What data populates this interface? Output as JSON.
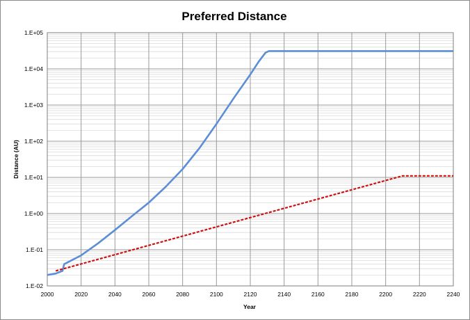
{
  "chart_data": {
    "type": "line",
    "title": "Preferred Distance",
    "xlabel": "Year",
    "ylabel": "Distance (AU)",
    "xlim": [
      2000,
      2240
    ],
    "ylim": [
      0.01,
      100000
    ],
    "yscale": "log",
    "x_ticks": [
      2000,
      2020,
      2040,
      2060,
      2080,
      2100,
      2120,
      2140,
      2160,
      2180,
      2200,
      2220,
      2240
    ],
    "x_tick_labels": [
      "2000",
      "2020",
      "2040",
      "2060",
      "2080",
      "2100",
      "2120",
      "2140",
      "2160",
      "2180",
      "2200",
      "2220",
      "2240"
    ],
    "y_ticks": [
      0.01,
      0.1,
      1,
      10,
      100,
      1000,
      10000,
      100000
    ],
    "y_tick_labels": [
      "1.E-02",
      "1.E-01",
      "1.E+00",
      "1.E+01",
      "1.E+02",
      "1.E+03",
      "1.E+04",
      "1.E+05"
    ],
    "grid": true,
    "legend": "none",
    "series": [
      {
        "color": "#5b8ed6",
        "style": "solid",
        "x": [
          2000,
          2005,
          2009,
          2010,
          2020,
          2030,
          2040,
          2050,
          2060,
          2070,
          2080,
          2090,
          2100,
          2110,
          2120,
          2125,
          2129,
          2131,
          2140,
          2200,
          2240
        ],
        "y": [
          0.02,
          0.022,
          0.026,
          0.04,
          0.07,
          0.15,
          0.35,
          0.85,
          2.0,
          5.5,
          17,
          65,
          300,
          1500,
          7000,
          16000,
          28000,
          31000,
          31000,
          31000,
          31000
        ]
      },
      {
        "color": "#cc1111",
        "style": "dashed",
        "x": [
          2005,
          2210,
          2240
        ],
        "y": [
          0.026,
          11,
          11
        ]
      }
    ]
  }
}
